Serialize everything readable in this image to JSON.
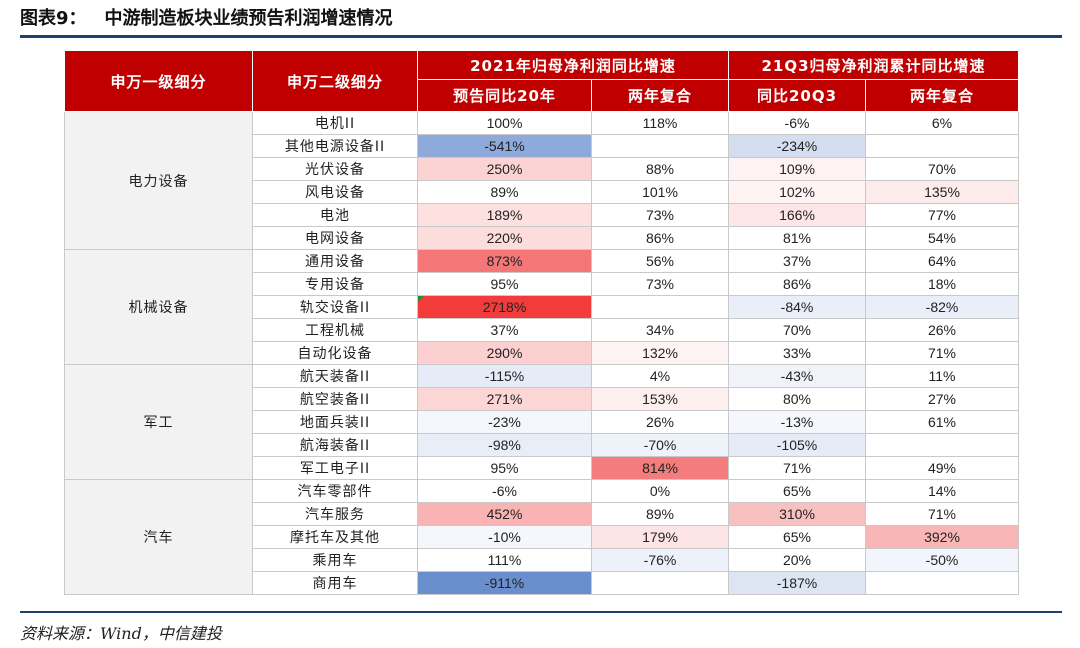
{
  "title": {
    "number": "图表9：",
    "text": "中游制造板块业绩预告利润增速情况"
  },
  "headers": {
    "col1": "申万一级细分",
    "col2": "申万二级细分",
    "group1": "2021年归母净利润同比增速",
    "group2": "21Q3归母净利润累计同比增速",
    "sub1": "预告同比20年",
    "sub2": "两年复合",
    "sub3": "同比20Q3",
    "sub4": "两年复合"
  },
  "groups": [
    {
      "name": "电力设备",
      "rows": [
        {
          "name": "电机II",
          "v": [
            "100%",
            "118%",
            "-6%",
            "6%"
          ],
          "c": [
            "#ffffff",
            "#ffffff",
            "#ffffff",
            "#ffffff"
          ]
        },
        {
          "name": "其他电源设备II",
          "v": [
            "-541%",
            "",
            "-234%",
            ""
          ],
          "c": [
            "#8eaadb",
            "#ffffff",
            "#d4def0",
            "#ffffff"
          ]
        },
        {
          "name": "光伏设备",
          "v": [
            "250%",
            "88%",
            "109%",
            "70%"
          ],
          "c": [
            "#fbd3d3",
            "#ffffff",
            "#fff2f2",
            "#ffffff"
          ]
        },
        {
          "name": "风电设备",
          "v": [
            "89%",
            "101%",
            "102%",
            "135%"
          ],
          "c": [
            "#ffffff",
            "#ffffff",
            "#fff3f3",
            "#fdeaea"
          ]
        },
        {
          "name": "电池",
          "v": [
            "189%",
            "73%",
            "166%",
            "77%"
          ],
          "c": [
            "#fde1e1",
            "#ffffff",
            "#fde6e6",
            "#ffffff"
          ]
        },
        {
          "name": "电网设备",
          "v": [
            "220%",
            "86%",
            "81%",
            "54%"
          ],
          "c": [
            "#fddcdc",
            "#ffffff",
            "#ffffff",
            "#ffffff"
          ]
        }
      ]
    },
    {
      "name": "机械设备",
      "rows": [
        {
          "name": "通用设备",
          "v": [
            "873%",
            "56%",
            "37%",
            "64%"
          ],
          "c": [
            "#f47676",
            "#ffffff",
            "#ffffff",
            "#ffffff"
          ]
        },
        {
          "name": "专用设备",
          "v": [
            "95%",
            "73%",
            "86%",
            "18%"
          ],
          "c": [
            "#ffffff",
            "#ffffff",
            "#ffffff",
            "#ffffff"
          ]
        },
        {
          "name": "轨交设备II",
          "v": [
            "2718%",
            "",
            "-84%",
            "-82%"
          ],
          "c": [
            "#f23b3b",
            "#ffffff",
            "#e9eef8",
            "#e9eef8"
          ]
        },
        {
          "name": "工程机械",
          "v": [
            "37%",
            "34%",
            "70%",
            "26%"
          ],
          "c": [
            "#ffffff",
            "#ffffff",
            "#ffffff",
            "#ffffff"
          ]
        },
        {
          "name": "自动化设备",
          "v": [
            "290%",
            "132%",
            "33%",
            "71%"
          ],
          "c": [
            "#fcd0d0",
            "#fff4f4",
            "#ffffff",
            "#ffffff"
          ]
        }
      ]
    },
    {
      "name": "军工",
      "rows": [
        {
          "name": "航天装备II",
          "v": [
            "-115%",
            "4%",
            "-43%",
            "11%"
          ],
          "c": [
            "#e6ecf7",
            "#ffffff",
            "#f0f4fa",
            "#ffffff"
          ]
        },
        {
          "name": "航空装备II",
          "v": [
            "271%",
            "153%",
            "80%",
            "27%"
          ],
          "c": [
            "#fcd5d5",
            "#feefef",
            "#ffffff",
            "#ffffff"
          ]
        },
        {
          "name": "地面兵装II",
          "v": [
            "-23%",
            "26%",
            "-13%",
            "61%"
          ],
          "c": [
            "#f3f6fb",
            "#ffffff",
            "#f5f7fc",
            "#ffffff"
          ]
        },
        {
          "name": "航海装备II",
          "v": [
            "-98%",
            "-70%",
            "-105%",
            ""
          ],
          "c": [
            "#e8eef8",
            "#eef2f9",
            "#e6ecf7",
            "#ffffff"
          ]
        },
        {
          "name": "军工电子II",
          "v": [
            "95%",
            "814%",
            "71%",
            "49%"
          ],
          "c": [
            "#ffffff",
            "#f47c7c",
            "#ffffff",
            "#ffffff"
          ]
        }
      ]
    },
    {
      "name": "汽车",
      "rows": [
        {
          "name": "汽车零部件",
          "v": [
            "-6%",
            "0%",
            "65%",
            "14%"
          ],
          "c": [
            "#ffffff",
            "#ffffff",
            "#ffffff",
            "#ffffff"
          ]
        },
        {
          "name": "汽车服务",
          "v": [
            "452%",
            "89%",
            "310%",
            "71%"
          ],
          "c": [
            "#f9b3b3",
            "#ffffff",
            "#f9c0c0",
            "#ffffff"
          ]
        },
        {
          "name": "摩托车及其他",
          "v": [
            "-10%",
            "179%",
            "65%",
            "392%"
          ],
          "c": [
            "#f5f7fc",
            "#fde5e5",
            "#ffffff",
            "#f9b6b6"
          ]
        },
        {
          "name": "乘用车",
          "v": [
            "111%",
            "-76%",
            "20%",
            "-50%"
          ],
          "c": [
            "#ffffff",
            "#edf1f9",
            "#ffffff",
            "#f2f5fb"
          ]
        },
        {
          "name": "商用车",
          "v": [
            "-911%",
            "",
            "-187%",
            ""
          ],
          "c": [
            "#6a8fcf",
            "#ffffff",
            "#dde5f3",
            "#ffffff"
          ]
        }
      ]
    }
  ],
  "source": "资料来源：Wind，中信建投"
}
